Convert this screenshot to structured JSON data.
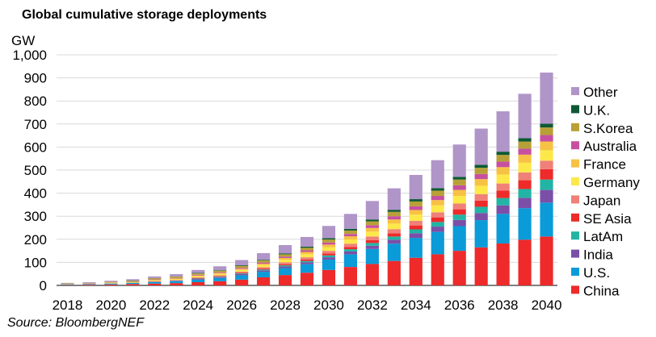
{
  "chart_data": {
    "type": "bar",
    "stacked": true,
    "title": "Global cumulative storage deployments",
    "ylabel": "GW",
    "xlabel": "",
    "ylim": [
      0,
      1000
    ],
    "yticks": [
      0,
      100,
      200,
      300,
      400,
      500,
      600,
      700,
      800,
      900,
      1000
    ],
    "ytick_labels": [
      "0",
      "100",
      "200",
      "300",
      "400",
      "500",
      "600",
      "700",
      "800",
      "900",
      "1,000"
    ],
    "grid": true,
    "legend_position": "right",
    "categories": [
      "2018",
      "2019",
      "2020",
      "2021",
      "2022",
      "2023",
      "2024",
      "2025",
      "2026",
      "2027",
      "2028",
      "2029",
      "2030",
      "2031",
      "2032",
      "2033",
      "2034",
      "2035",
      "2036",
      "2037",
      "2038",
      "2039",
      "2040"
    ],
    "xtick_labels": [
      "2018",
      "2020",
      "2022",
      "2024",
      "2026",
      "2028",
      "2030",
      "2032",
      "2034",
      "2036",
      "2038",
      "2040"
    ],
    "series": [
      {
        "name": "China",
        "color": "#ee2a2a",
        "values": [
          2,
          3,
          4,
          6,
          8,
          10,
          14,
          18,
          25,
          35,
          45,
          55,
          67,
          80,
          93,
          106,
          120,
          135,
          150,
          165,
          182,
          198,
          212
        ]
      },
      {
        "name": "U.S.",
        "color": "#0a9bd8",
        "values": [
          3,
          3,
          4,
          5,
          6,
          8,
          11,
          14,
          19,
          24,
          30,
          37,
          45,
          55,
          65,
          75,
          86,
          97,
          107,
          118,
          128,
          137,
          147
        ]
      },
      {
        "name": "India",
        "color": "#7b4fa8",
        "values": [
          0,
          0,
          0,
          0,
          1,
          2,
          3,
          4,
          5,
          6,
          7,
          8,
          10,
          12,
          14,
          17,
          20,
          23,
          27,
          31,
          37,
          45,
          55
        ]
      },
      {
        "name": "LatAm",
        "color": "#22b4a4",
        "values": [
          0,
          0,
          0,
          0,
          1,
          1,
          2,
          2,
          3,
          4,
          5,
          6,
          8,
          10,
          12,
          14,
          17,
          20,
          23,
          27,
          32,
          38,
          45
        ]
      },
      {
        "name": "SE Asia",
        "color": "#ee2a2a",
        "values": [
          0,
          0,
          0,
          0,
          1,
          1,
          2,
          2,
          3,
          4,
          5,
          6,
          8,
          10,
          12,
          14,
          17,
          20,
          23,
          27,
          32,
          38,
          45
        ]
      },
      {
        "name": "Japan",
        "color": "#f08078",
        "values": [
          1,
          1,
          1,
          1,
          2,
          2,
          3,
          4,
          5,
          6,
          8,
          10,
          12,
          14,
          16,
          18,
          20,
          22,
          25,
          28,
          31,
          34,
          37
        ]
      },
      {
        "name": "Germany",
        "color": "#fde84a",
        "values": [
          1,
          1,
          2,
          2,
          3,
          4,
          5,
          6,
          7,
          9,
          11,
          13,
          15,
          18,
          21,
          24,
          27,
          30,
          33,
          36,
          39,
          42,
          45
        ]
      },
      {
        "name": "France",
        "color": "#f7c244",
        "values": [
          0,
          0,
          1,
          1,
          2,
          2,
          3,
          4,
          5,
          6,
          8,
          10,
          12,
          14,
          16,
          18,
          20,
          23,
          26,
          29,
          32,
          35,
          38
        ]
      },
      {
        "name": "Australia",
        "color": "#c74fa0",
        "values": [
          0,
          1,
          1,
          1,
          2,
          2,
          3,
          3,
          4,
          5,
          6,
          7,
          9,
          10,
          12,
          14,
          16,
          18,
          20,
          22,
          24,
          26,
          28
        ]
      },
      {
        "name": "S.Korea",
        "color": "#b8a038",
        "values": [
          2,
          2,
          3,
          4,
          5,
          6,
          6,
          7,
          8,
          9,
          10,
          11,
          13,
          15,
          17,
          19,
          21,
          23,
          25,
          27,
          29,
          31,
          33
        ]
      },
      {
        "name": "U.K.",
        "color": "#0d5a34",
        "values": [
          0,
          0,
          0,
          1,
          1,
          1,
          2,
          2,
          3,
          3,
          4,
          5,
          6,
          7,
          8,
          9,
          10,
          11,
          12,
          13,
          14,
          15,
          16
        ]
      },
      {
        "name": "Other",
        "color": "#b095c8",
        "values": [
          2,
          3,
          4,
          6,
          7,
          10,
          13,
          17,
          23,
          29,
          36,
          42,
          53,
          65,
          80,
          93,
          105,
          121,
          140,
          157,
          175,
          192,
          222
        ]
      }
    ],
    "legend_order": [
      "Other",
      "U.K.",
      "S.Korea",
      "Australia",
      "France",
      "Germany",
      "Japan",
      "SE Asia",
      "LatAm",
      "India",
      "U.S.",
      "China"
    ]
  },
  "source": "Source: BloombergNEF"
}
